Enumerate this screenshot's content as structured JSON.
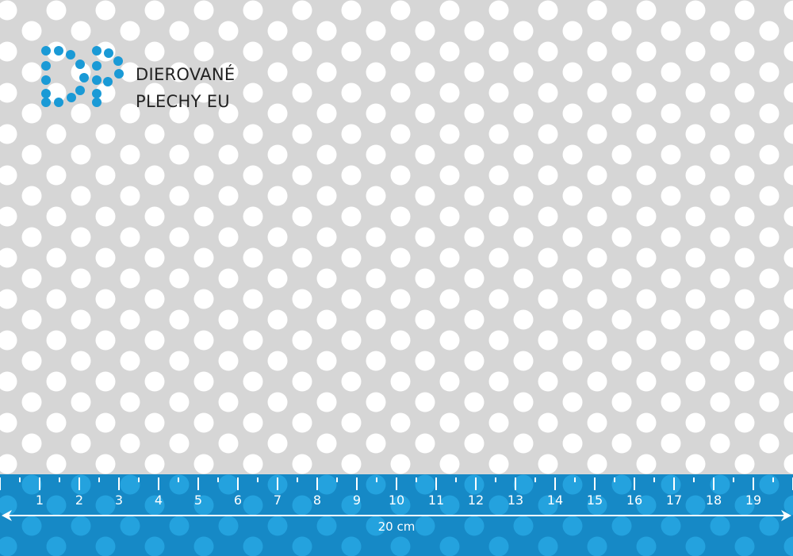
{
  "brand": {
    "line1": "DIEROVANÉ",
    "line2": "PLECHY EU",
    "color": "#1a9ad6"
  },
  "ruler": {
    "labels": [
      "1",
      "2",
      "3",
      "4",
      "5",
      "6",
      "7",
      "8",
      "9",
      "10",
      "11",
      "12",
      "13",
      "14",
      "15",
      "16",
      "17",
      "18",
      "19"
    ],
    "total_label": "20 cm",
    "color": "#1a93d2"
  }
}
